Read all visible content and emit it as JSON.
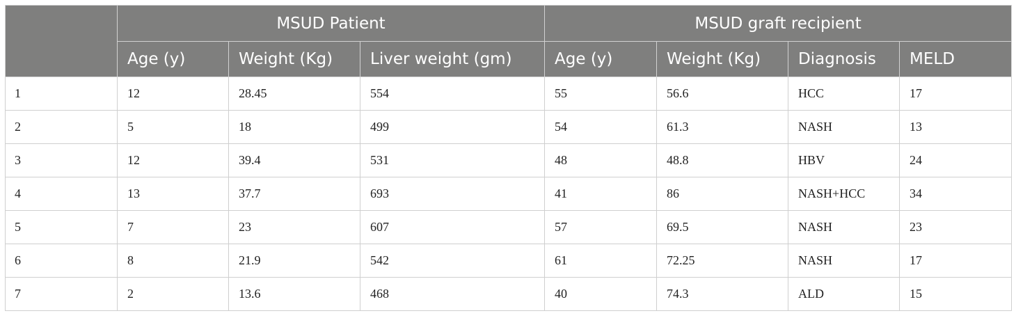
{
  "table": {
    "groups": {
      "patient": "MSUD Patient",
      "recipient": "MSUD graft recipient"
    },
    "columns": [
      "Age (y)",
      "Weight (Kg)",
      "Liver weight (gm)",
      "Age (y)",
      "Weight (Kg)",
      "Diagnosis",
      "MELD"
    ],
    "rows": [
      [
        "1",
        "12",
        "28.45",
        "554",
        "55",
        "56.6",
        "HCC",
        "17"
      ],
      [
        "2",
        "5",
        "18",
        "499",
        "54",
        "61.3",
        "NASH",
        "13"
      ],
      [
        "3",
        "12",
        "39.4",
        "531",
        "48",
        "48.8",
        "HBV",
        "24"
      ],
      [
        "4",
        "13",
        "37.7",
        "693",
        "41",
        "86",
        "NASH+HCC",
        "34"
      ],
      [
        "5",
        "7",
        "23",
        "607",
        "57",
        "69.5",
        "NASH",
        "23"
      ],
      [
        "6",
        "8",
        "21.9",
        "542",
        "61",
        "72.25",
        "NASH",
        "17"
      ],
      [
        "7",
        "2",
        "13.6",
        "468",
        "40",
        "74.3",
        "ALD",
        "15"
      ]
    ]
  }
}
